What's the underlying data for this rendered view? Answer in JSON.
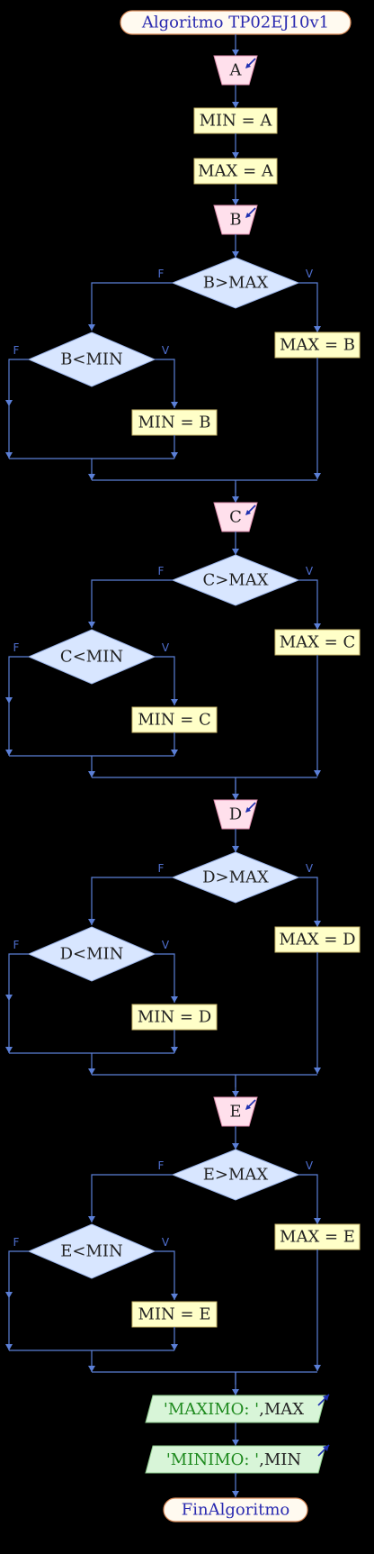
{
  "title": "Algoritmo TP02EJ10v1",
  "end": "FinAlgoritmo",
  "false_label": "F",
  "true_label": "V",
  "init": {
    "read_var": "A",
    "assign_min": "MIN = A",
    "assign_max": "MAX = A"
  },
  "blocks": [
    {
      "var": "B",
      "cond_max": "B>MAX",
      "assign_max": "MAX = B",
      "cond_min": "B<MIN",
      "assign_min": "MIN = B"
    },
    {
      "var": "C",
      "cond_max": "C>MAX",
      "assign_max": "MAX = C",
      "cond_min": "C<MIN",
      "assign_min": "MIN = C"
    },
    {
      "var": "D",
      "cond_max": "D>MAX",
      "assign_max": "MAX = D",
      "cond_min": "D<MIN",
      "assign_min": "MIN = D"
    },
    {
      "var": "E",
      "cond_max": "E>MAX",
      "assign_max": "MAX = E",
      "cond_min": "E<MIN",
      "assign_min": "MIN = E"
    }
  ],
  "outputs": [
    {
      "str": "'MAXIMO: '",
      "sep": ",",
      "var": "MAX"
    },
    {
      "str": "'MINIMO: '",
      "sep": ",",
      "var": "MIN"
    }
  ],
  "colors": {
    "line": "#5b7fd6",
    "start_fill": "#fffaf0",
    "start_stroke": "#d98b5a",
    "input_fill": "#ffe0ec",
    "assign_fill": "#ffffc8",
    "assign_stroke": "#c9b66a",
    "decision_fill": "#d8e6ff",
    "output_fill": "#d8f5d8",
    "output_string": "#1e8a1e",
    "output_var": "#222222",
    "text": "#222222",
    "title_text": "#2a2ab0"
  }
}
